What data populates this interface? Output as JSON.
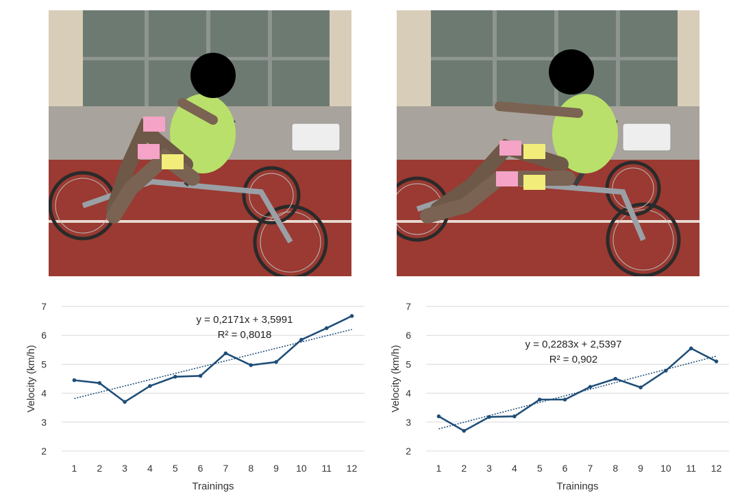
{
  "colors": {
    "series": "#1f4e79",
    "trend": "#1f4e79",
    "grid": "#d9d9d9",
    "track": "#9a3a32",
    "pavement": "#a8a39c",
    "wall": "#d8cdb8",
    "glass": "#6d7a72",
    "shirt": "#b9e06a"
  },
  "photos": [
    {
      "name": "rider-tricycle-left"
    },
    {
      "name": "rider-tricycle-right"
    }
  ],
  "chart_data": [
    {
      "type": "line",
      "xlabel": "Trainings",
      "ylabel": "Velocity (km/h)",
      "x": [
        1,
        2,
        3,
        4,
        5,
        6,
        7,
        8,
        9,
        10,
        11,
        12
      ],
      "ylim": [
        2,
        7
      ],
      "yticks": [
        2,
        3,
        4,
        5,
        6,
        7
      ],
      "grid": true,
      "series": [
        {
          "values": [
            4.45,
            4.35,
            3.7,
            4.25,
            4.57,
            4.6,
            5.38,
            4.97,
            5.08,
            5.85,
            6.25,
            6.67
          ]
        }
      ],
      "trendline": {
        "type": "linear",
        "slope": 0.2171,
        "intercept": 3.5991,
        "equation": "y = 0,2171x + 3,5991",
        "r2_label": "R² = 0,8018"
      }
    },
    {
      "type": "line",
      "xlabel": "Trainings",
      "ylabel": "Velocity (km/h)",
      "x": [
        1,
        2,
        3,
        4,
        5,
        6,
        7,
        8,
        9,
        10,
        11,
        12
      ],
      "ylim": [
        2,
        7
      ],
      "yticks": [
        2,
        3,
        4,
        5,
        6,
        7
      ],
      "grid": true,
      "series": [
        {
          "values": [
            3.2,
            2.7,
            3.18,
            3.2,
            3.78,
            3.78,
            4.22,
            4.5,
            4.2,
            4.78,
            5.55,
            5.1
          ]
        }
      ],
      "trendline": {
        "type": "linear",
        "slope": 0.2283,
        "intercept": 2.5397,
        "equation": "y = 0,2283x + 2,5397",
        "r2_label": "R² = 0,902"
      }
    }
  ]
}
